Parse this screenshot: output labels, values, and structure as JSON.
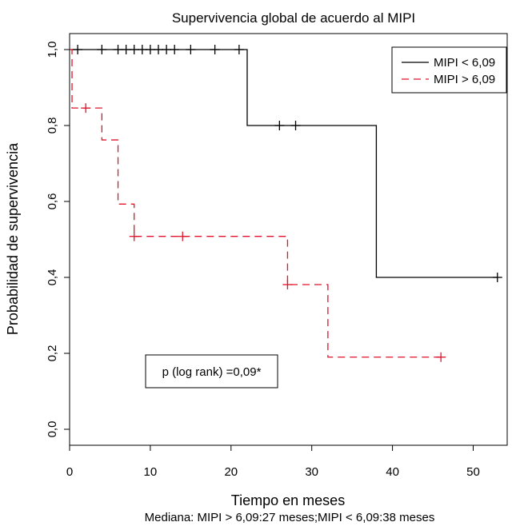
{
  "chart_data": {
    "type": "line",
    "title": "Supervivencia global de acuerdo al MIPI",
    "xlabel": "Tiempo en meses",
    "ylabel": "Probabilidad de supervivencia",
    "subtitle": "Mediana: MIPI > 6,09:27 meses;MIPI < 6,09:38 meses",
    "xlim": [
      0,
      55
    ],
    "ylim": [
      0,
      1
    ],
    "x_ticks": [
      "0",
      "10",
      "20",
      "30",
      "40",
      "50"
    ],
    "y_ticks": [
      "0,0",
      "0,2",
      "0,4",
      "0,6",
      "0,8",
      "1,0"
    ],
    "grid": false,
    "legend_position": "top-right",
    "annotation": "p (log rank) =0,09*",
    "series": [
      {
        "name": "MIPI < 6,09",
        "color": "#000000",
        "dash": "solid",
        "steps": [
          [
            0,
            1.0
          ],
          [
            22,
            0.8
          ],
          [
            38,
            0.4
          ],
          [
            53,
            0.4
          ]
        ],
        "censored": [
          [
            1,
            1.0
          ],
          [
            4,
            1.0
          ],
          [
            6,
            1.0
          ],
          [
            7,
            1.0
          ],
          [
            8,
            1.0
          ],
          [
            9,
            1.0
          ],
          [
            10,
            1.0
          ],
          [
            11,
            1.0
          ],
          [
            12,
            1.0
          ],
          [
            13,
            1.0
          ],
          [
            15,
            1.0
          ],
          [
            18,
            1.0
          ],
          [
            21,
            1.0
          ],
          [
            26,
            0.8
          ],
          [
            28,
            0.8
          ],
          [
            53,
            0.4
          ]
        ]
      },
      {
        "name": "MIPI > 6,09",
        "color": "#e0132a",
        "dash": "dashed",
        "steps": [
          [
            0,
            1.0
          ],
          [
            0.3,
            0.846
          ],
          [
            4,
            0.762
          ],
          [
            6,
            0.593
          ],
          [
            8,
            0.508
          ],
          [
            27,
            0.381
          ],
          [
            32,
            0.19
          ],
          [
            46,
            0.19
          ]
        ],
        "censored": [
          [
            2,
            0.846
          ],
          [
            8,
            0.508
          ],
          [
            14,
            0.508
          ],
          [
            27,
            0.381
          ],
          [
            46,
            0.19
          ]
        ]
      }
    ]
  }
}
